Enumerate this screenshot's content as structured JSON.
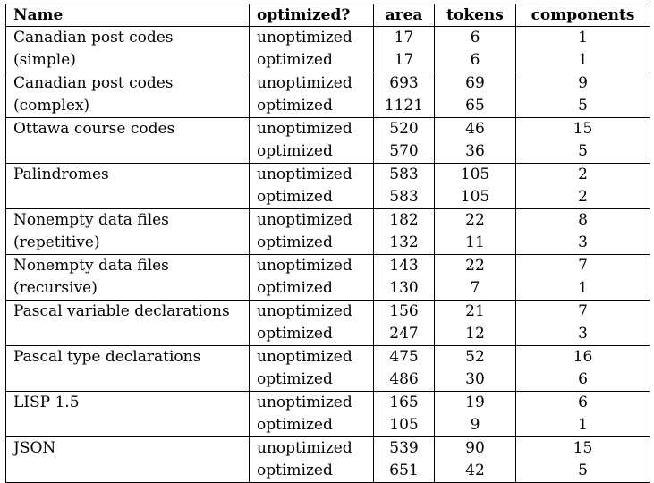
{
  "table": {
    "headers": [
      "Name",
      "optimized?",
      "area",
      "tokens",
      "components"
    ],
    "groups": [
      {
        "name_lines": [
          "Canadian post codes",
          "(simple)"
        ],
        "rows": [
          {
            "optimized": "unoptimized",
            "area": "17",
            "tokens": "6",
            "components": "1"
          },
          {
            "optimized": "optimized",
            "area": "17",
            "tokens": "6",
            "components": "1"
          }
        ]
      },
      {
        "name_lines": [
          "Canadian post codes",
          "(complex)"
        ],
        "rows": [
          {
            "optimized": "unoptimized",
            "area": "693",
            "tokens": "69",
            "components": "9"
          },
          {
            "optimized": "optimized",
            "area": "1121",
            "tokens": "65",
            "components": "5"
          }
        ]
      },
      {
        "name_lines": [
          "Ottawa course codes"
        ],
        "rows": [
          {
            "optimized": "unoptimized",
            "area": "520",
            "tokens": "46",
            "components": "15"
          },
          {
            "optimized": "optimized",
            "area": "570",
            "tokens": "36",
            "components": "5"
          }
        ]
      },
      {
        "name_lines": [
          "Palindromes"
        ],
        "rows": [
          {
            "optimized": "unoptimized",
            "area": "583",
            "tokens": "105",
            "components": "2"
          },
          {
            "optimized": "optimized",
            "area": "583",
            "tokens": "105",
            "components": "2"
          }
        ]
      },
      {
        "name_lines": [
          "Nonempty data files",
          "(repetitive)"
        ],
        "rows": [
          {
            "optimized": "unoptimized",
            "area": "182",
            "tokens": "22",
            "components": "8"
          },
          {
            "optimized": "optimized",
            "area": "132",
            "tokens": "11",
            "components": "3"
          }
        ]
      },
      {
        "name_lines": [
          "Nonempty data files",
          "(recursive)"
        ],
        "rows": [
          {
            "optimized": "unoptimized",
            "area": "143",
            "tokens": "22",
            "components": "7"
          },
          {
            "optimized": "optimized",
            "area": "130",
            "tokens": "7",
            "components": "1"
          }
        ]
      },
      {
        "name_lines": [
          "Pascal variable declarations"
        ],
        "rows": [
          {
            "optimized": "unoptimized",
            "area": "156",
            "tokens": "21",
            "components": "7"
          },
          {
            "optimized": "optimized",
            "area": "247",
            "tokens": "12",
            "components": "3"
          }
        ]
      },
      {
        "name_lines": [
          "Pascal type declarations"
        ],
        "rows": [
          {
            "optimized": "unoptimized",
            "area": "475",
            "tokens": "52",
            "components": "16"
          },
          {
            "optimized": "optimized",
            "area": "486",
            "tokens": "30",
            "components": "6"
          }
        ]
      },
      {
        "name_lines": [
          "LISP 1.5"
        ],
        "rows": [
          {
            "optimized": "unoptimized",
            "area": "165",
            "tokens": "19",
            "components": "6"
          },
          {
            "optimized": "optimized",
            "area": "105",
            "tokens": "9",
            "components": "1"
          }
        ]
      },
      {
        "name_lines": [
          "JSON"
        ],
        "rows": [
          {
            "optimized": "unoptimized",
            "area": "539",
            "tokens": "90",
            "components": "15"
          },
          {
            "optimized": "optimized",
            "area": "651",
            "tokens": "42",
            "components": "5"
          }
        ]
      }
    ]
  }
}
